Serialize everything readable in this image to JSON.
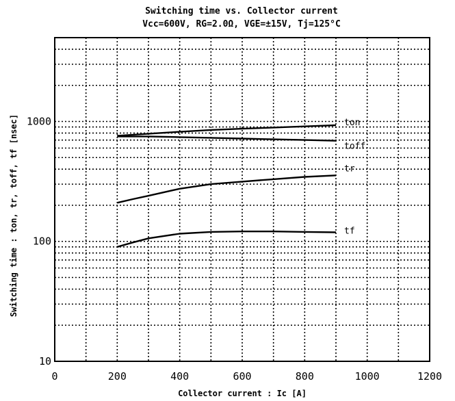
{
  "chart_data": {
    "type": "line",
    "title": "Switching time vs. Collector current",
    "subtitle": "Vcc=600V,  RG=2.0Ω,  VGE=±15V,  Tj=125°C",
    "xlabel": "Collector current : Ic [A]",
    "ylabel": "Switching time : ton, tr, toff, tf [nsec]",
    "xlim": [
      0,
      1200
    ],
    "ylim": [
      10,
      5000
    ],
    "yscale": "log",
    "grid": true,
    "x_ticks": [
      "0",
      "200",
      "400",
      "600",
      "800",
      "1000",
      "1200"
    ],
    "y_ticks": [
      "10",
      "100",
      "1000"
    ],
    "series": [
      {
        "name": "ton",
        "x": [
          200,
          300,
          400,
          500,
          600,
          700,
          800,
          900
        ],
        "y": [
          760,
          790,
          820,
          850,
          870,
          890,
          910,
          930
        ]
      },
      {
        "name": "toff",
        "x": [
          200,
          300,
          400,
          500,
          600,
          700,
          800,
          900
        ],
        "y": [
          750,
          750,
          740,
          730,
          720,
          710,
          700,
          690
        ]
      },
      {
        "name": "tr",
        "x": [
          200,
          250,
          300,
          400,
          500,
          600,
          700,
          800,
          900
        ],
        "y": [
          210,
          225,
          240,
          275,
          300,
          315,
          330,
          345,
          355
        ]
      },
      {
        "name": "tf",
        "x": [
          200,
          250,
          300,
          400,
          500,
          600,
          700,
          800,
          900
        ],
        "y": [
          90,
          98,
          106,
          116,
          120,
          121,
          121,
          120,
          119
        ]
      }
    ]
  }
}
